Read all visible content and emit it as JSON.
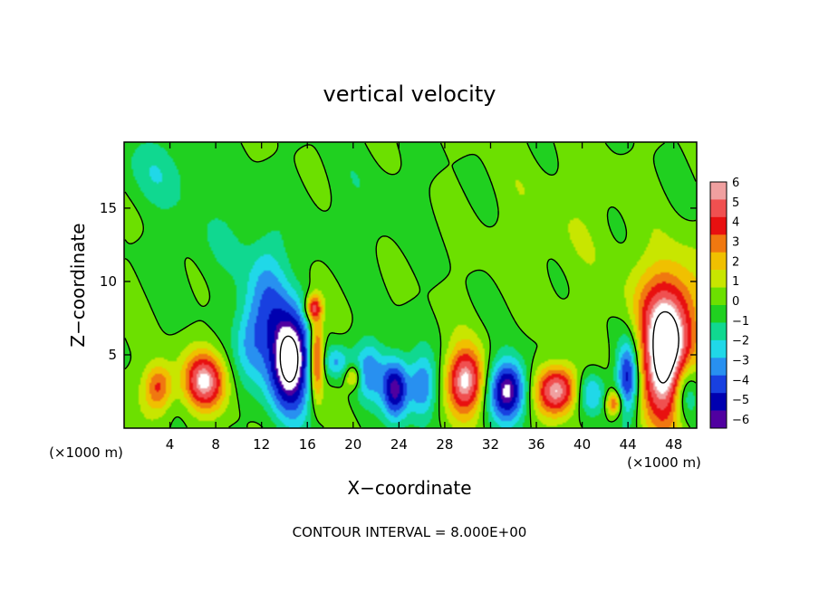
{
  "chart_data": {
    "type": "heatmap",
    "title": "vertical velocity",
    "xlabel": "X−coordinate",
    "ylabel": "Z−coordinate",
    "x_unit": "(×1000 m)",
    "x_unit_right": "(×1000 m)",
    "footer": "CONTOUR INTERVAL = 8.000E+00",
    "xlim": [
      0,
      50
    ],
    "ylim": [
      0,
      19.5
    ],
    "x_ticks": [
      4,
      8,
      12,
      16,
      20,
      24,
      28,
      32,
      36,
      40,
      44,
      48
    ],
    "x_tick_labels": [
      "4",
      "8",
      "12",
      "16",
      "20",
      "24",
      "28",
      "32",
      "36",
      "40",
      "44",
      "48"
    ],
    "y_ticks": [
      5,
      10,
      15
    ],
    "y_tick_labels": [
      "5",
      "10",
      "15"
    ],
    "colorbar": {
      "levels": [
        6,
        5,
        4,
        3,
        2,
        1,
        0,
        -1,
        -2,
        -3,
        -4,
        -5,
        -6
      ],
      "level_labels": [
        "6",
        "5",
        "4",
        "3",
        "2",
        "1",
        "0",
        "−1",
        "−2",
        "−3",
        "−4",
        "−5",
        "−6"
      ],
      "colors": [
        "#f0a0a0",
        "#f05050",
        "#e81010",
        "#f07810",
        "#f0c000",
        "#c8e600",
        "#6ce000",
        "#20d020",
        "#10d890",
        "#20d8e8",
        "#2890f0",
        "#1840e0",
        "#0000b0",
        "#5000a0"
      ]
    },
    "features": [
      {
        "x": 3.0,
        "z": 2.8,
        "sx": 0.9,
        "sz": 1.2,
        "w": 4.5
      },
      {
        "x": 7.0,
        "z": 3.2,
        "sx": 1.3,
        "sz": 1.4,
        "w": 6.5
      },
      {
        "x": 14.5,
        "z": 4.5,
        "sx": 1.3,
        "sz": 2.5,
        "w": -8.5
      },
      {
        "x": 12.5,
        "z": 8.5,
        "sx": 1.2,
        "sz": 3.2,
        "w": -3.5
      },
      {
        "x": 11.0,
        "z": 6.0,
        "sx": 1.0,
        "sz": 2.0,
        "w": -2.5
      },
      {
        "x": 16.8,
        "z": 4.8,
        "sx": 0.45,
        "sz": 2.0,
        "w": 6.0
      },
      {
        "x": 16.5,
        "z": 8.2,
        "sx": 0.5,
        "sz": 0.6,
        "w": 5.0
      },
      {
        "x": 18.5,
        "z": 4.5,
        "sx": 0.8,
        "sz": 0.8,
        "w": -3.0
      },
      {
        "x": 20.0,
        "z": 3.5,
        "sx": 0.5,
        "sz": 0.6,
        "w": 3.5
      },
      {
        "x": 21.5,
        "z": 4.0,
        "sx": 1.0,
        "sz": 1.5,
        "w": -3.5
      },
      {
        "x": 23.7,
        "z": 2.7,
        "sx": 0.8,
        "sz": 1.5,
        "w": -6.5
      },
      {
        "x": 26.0,
        "z": 2.8,
        "sx": 0.9,
        "sz": 1.5,
        "w": -4.0
      },
      {
        "x": 29.8,
        "z": 3.2,
        "sx": 1.2,
        "sz": 1.6,
        "w": 7.0
      },
      {
        "x": 33.5,
        "z": 2.6,
        "sx": 1.2,
        "sz": 1.5,
        "w": -7.0
      },
      {
        "x": 37.8,
        "z": 2.6,
        "sx": 1.3,
        "sz": 1.2,
        "w": 7.0
      },
      {
        "x": 40.8,
        "z": 2.4,
        "sx": 0.9,
        "sz": 1.1,
        "w": -3.5
      },
      {
        "x": 42.8,
        "z": 1.7,
        "sx": 0.5,
        "sz": 0.6,
        "w": 4.5
      },
      {
        "x": 44.0,
        "z": 3.5,
        "sx": 0.7,
        "sz": 1.8,
        "w": -6.0
      },
      {
        "x": 47.3,
        "z": 4.5,
        "sx": 1.6,
        "sz": 3.0,
        "w": 8.5
      },
      {
        "x": 48.0,
        "z": 8.5,
        "sx": 2.5,
        "sz": 2.5,
        "w": 3.0
      },
      {
        "x": 49.0,
        "z": 2.5,
        "sx": 0.8,
        "sz": 1.5,
        "w": -4.0
      },
      {
        "x": 3.0,
        "z": 17.5,
        "sx": 2.5,
        "sz": 1.8,
        "w": -1.5
      },
      {
        "x": 8.0,
        "z": 12.5,
        "sx": 3.0,
        "sz": 2.5,
        "w": -0.8
      },
      {
        "x": 38.0,
        "z": 14.0,
        "sx": 5.0,
        "sz": 4.0,
        "w": 0.7
      },
      {
        "x": 21.0,
        "z": 15.0,
        "sx": 4.0,
        "sz": 3.0,
        "w": -0.6
      }
    ]
  }
}
